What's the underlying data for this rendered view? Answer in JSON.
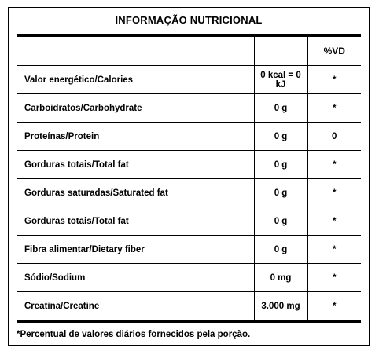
{
  "title": "INFORMAÇÃO NUTRICIONAL",
  "header": {
    "nutrient": "",
    "quantity": "",
    "dv": "%VD"
  },
  "rows": [
    {
      "nutrient": "Valor energético/Calories",
      "quantity": "0 kcal = 0 kJ",
      "dv": "*"
    },
    {
      "nutrient": "Carboidratos/Carbohydrate",
      "quantity": "0 g",
      "dv": "*"
    },
    {
      "nutrient": "Proteínas/Protein",
      "quantity": "0 g",
      "dv": "0"
    },
    {
      "nutrient": "Gorduras totais/Total fat",
      "quantity": "0 g",
      "dv": "*"
    },
    {
      "nutrient": "Gorduras saturadas/Saturated fat",
      "quantity": "0 g",
      "dv": "*"
    },
    {
      "nutrient": "Gorduras totais/Total fat",
      "quantity": "0 g",
      "dv": "*"
    },
    {
      "nutrient": "Fibra alimentar/Dietary fiber",
      "quantity": "0 g",
      "dv": "*"
    },
    {
      "nutrient": "Sódio/Sodium",
      "quantity": "0 mg",
      "dv": "*"
    },
    {
      "nutrient": "Creatina/Creatine",
      "quantity": "3.000 mg",
      "dv": "*"
    }
  ],
  "footnote": "*Percentual de valores diários fornecidos pela porção."
}
